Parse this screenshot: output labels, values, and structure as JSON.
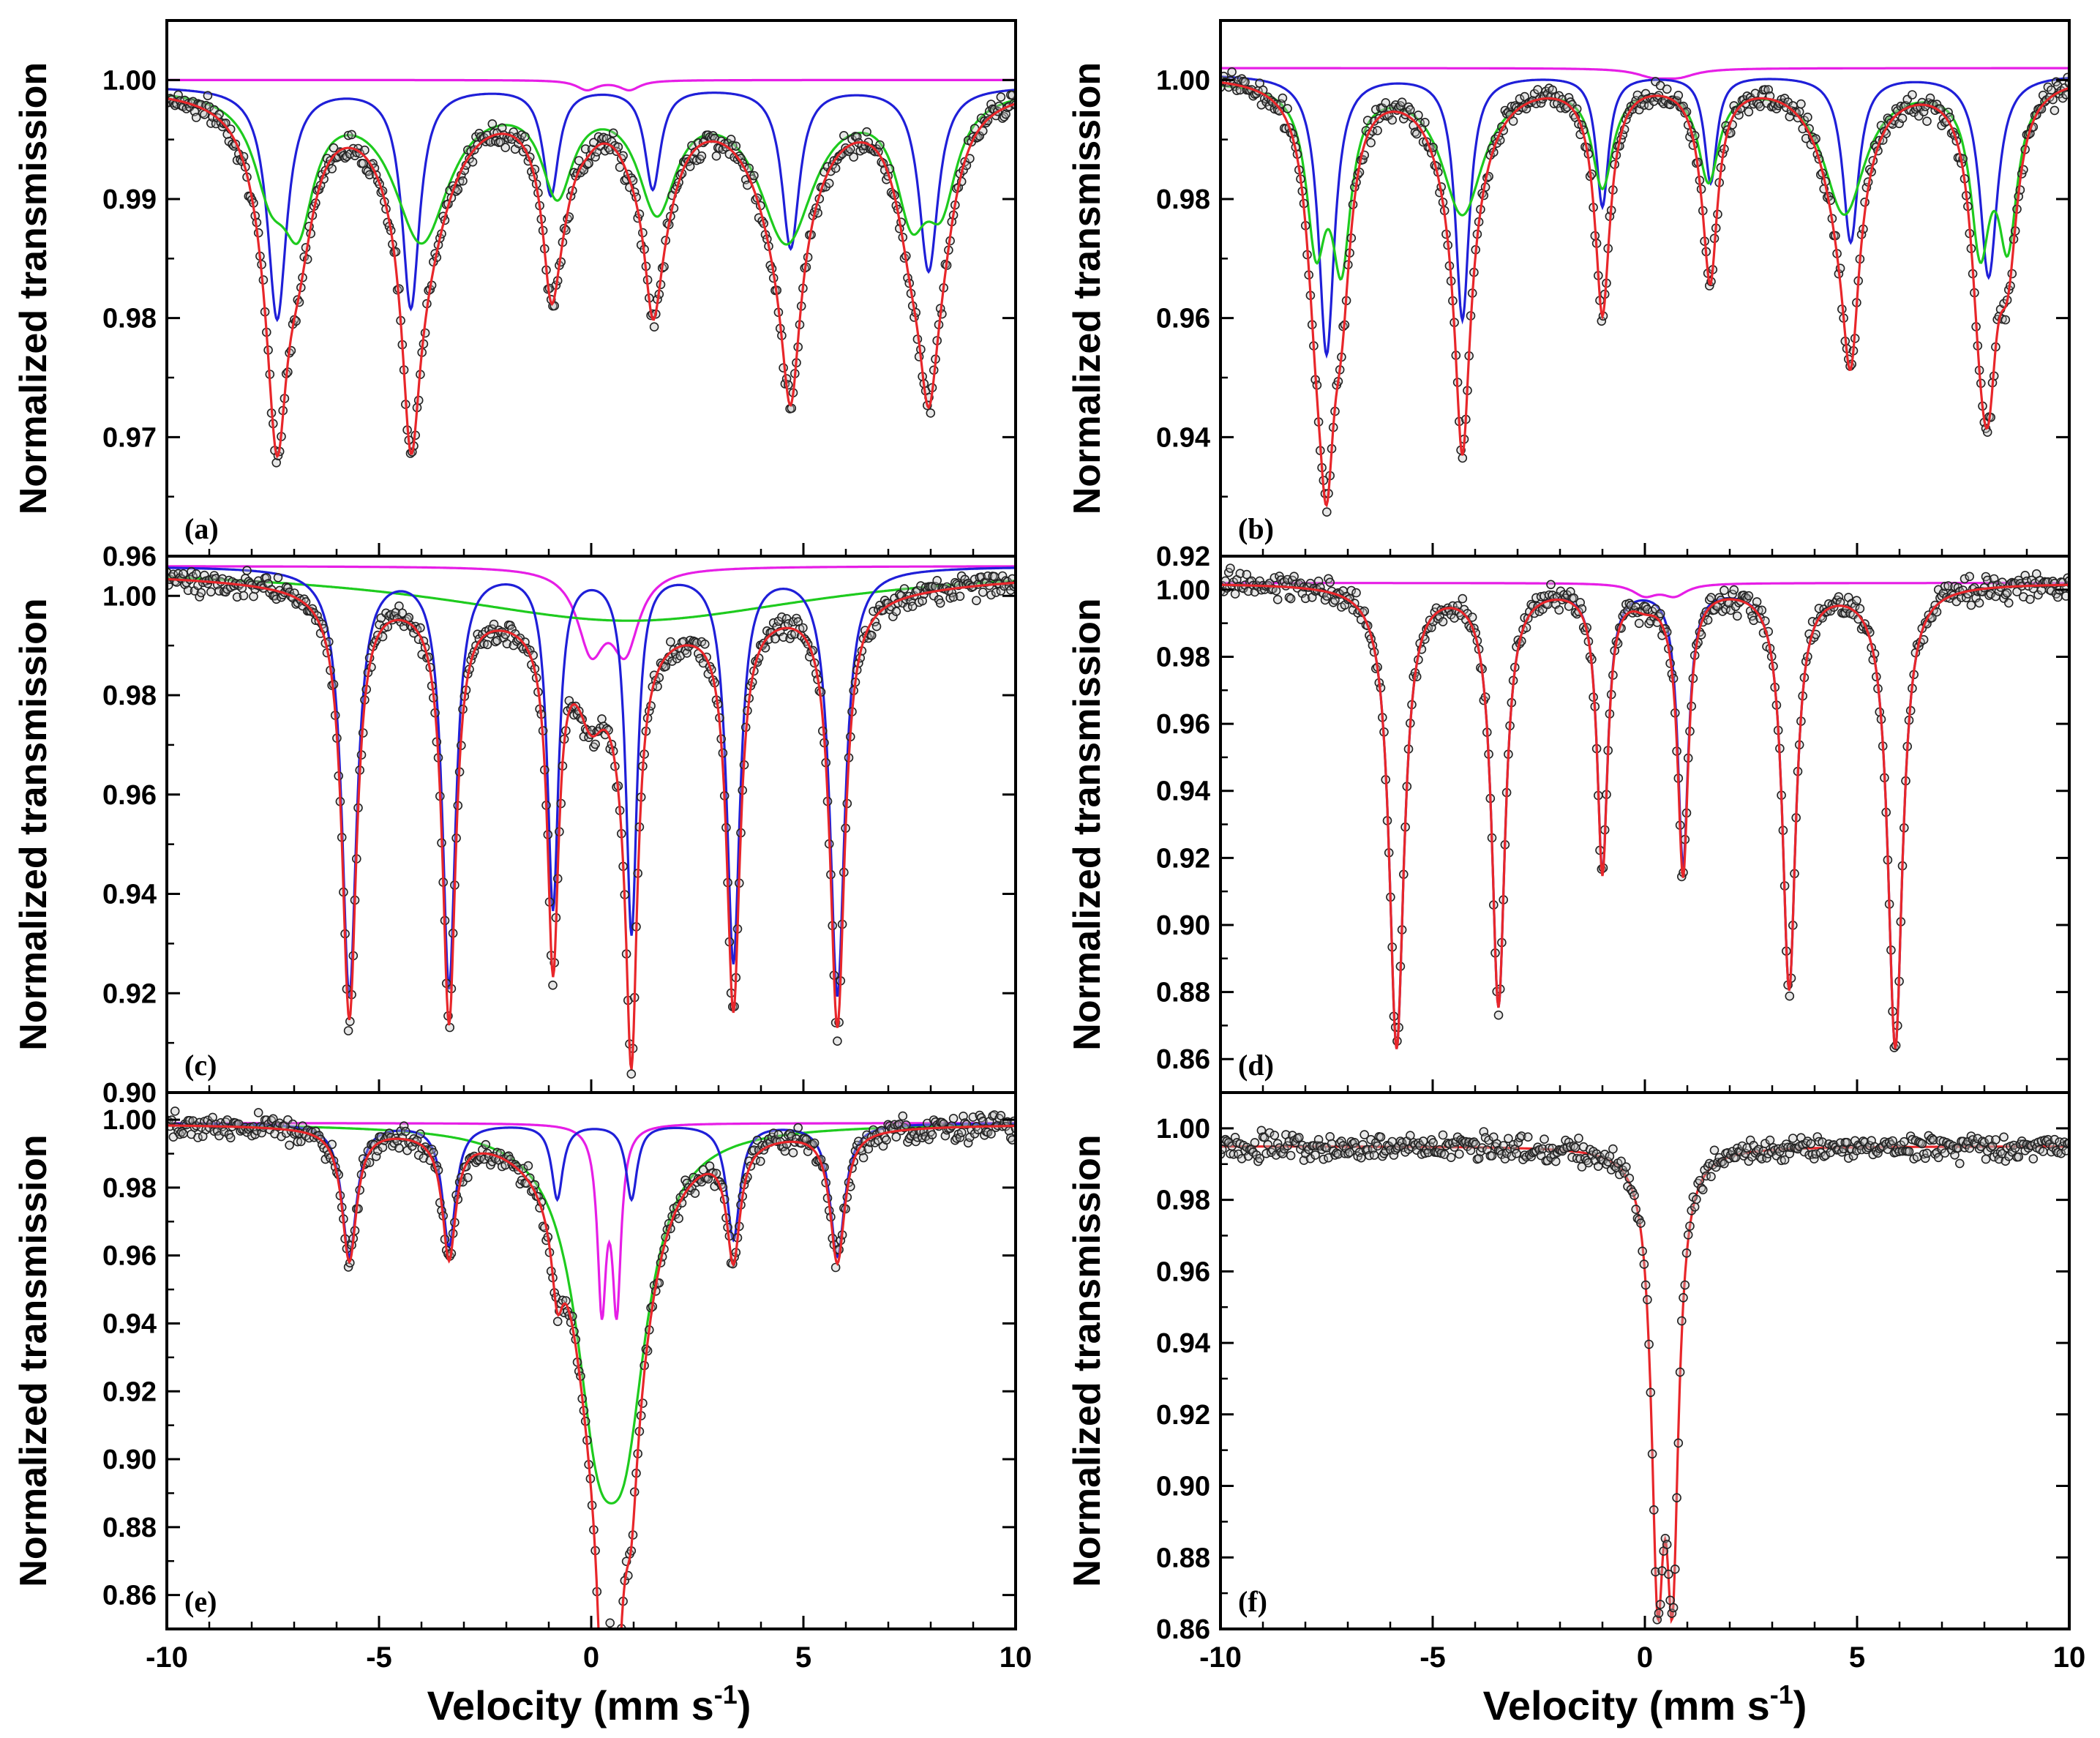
{
  "figure": {
    "ylabel": "Normalized transmission",
    "xlabel_main": "Velocity (mm s",
    "xlabel_sup": "-1",
    "xlabel_end": ")",
    "xticks": [
      "-10",
      "-5",
      "0",
      "5",
      "10"
    ]
  },
  "colors": {
    "fit_total": "#e8262a",
    "sextet_blue": "#1f1fd8",
    "sextet_green": "#1ecb1e",
    "doublet_magenta": "#e61ee6",
    "data_point_edge": "#222222",
    "data_point_fill": "#bdbdbd"
  },
  "chart_data": [
    {
      "panel": "(a)",
      "type": "line",
      "xlabel": "Velocity (mm s-1)",
      "ylabel": "Normalized transmission",
      "xlim": [
        -10,
        10
      ],
      "ylim": [
        0.96,
        1.005
      ],
      "yticks": [
        0.96,
        0.97,
        0.98,
        0.99,
        1.0
      ],
      "ytick_labels": [
        "0.96",
        "0.97",
        "0.98",
        "0.99",
        "1.00"
      ],
      "data_points": "experimental spectrum (scatter) with noise about the total fit",
      "series": [
        {
          "name": "magenta doublet",
          "color": "#e61ee6",
          "baseline": 1.0,
          "peaks": [
            [
              -0.1,
              0.0008,
              0.6
            ],
            [
              0.9,
              0.0008,
              0.6
            ]
          ]
        },
        {
          "name": "blue sextet",
          "color": "#1f1fd8",
          "baseline": 0.9995,
          "peaks": [
            [
              -7.4,
              0.0195,
              0.55
            ],
            [
              -4.25,
              0.0185,
              0.5
            ],
            [
              -0.95,
              0.009,
              0.45
            ],
            [
              1.45,
              0.0085,
              0.45
            ],
            [
              4.7,
              0.0135,
              0.5
            ],
            [
              7.95,
              0.0155,
              0.55
            ]
          ]
        },
        {
          "name": "green sextet",
          "color": "#1ecb1e",
          "baseline": 0.9995,
          "peaks": [
            [
              -7.55,
              0.007,
              1.0
            ],
            [
              -6.9,
              0.0095,
              0.9
            ],
            [
              -4.0,
              0.0125,
              1.6
            ],
            [
              -0.8,
              0.008,
              0.9
            ],
            [
              1.55,
              0.0095,
              1.1
            ],
            [
              4.6,
              0.0125,
              1.6
            ],
            [
              7.55,
              0.009,
              0.9
            ],
            [
              8.25,
              0.008,
              0.9
            ]
          ]
        },
        {
          "name": "total fit",
          "color": "#e8262a",
          "sum_of": [
            0,
            1,
            2
          ],
          "baseline": 0.9995
        }
      ]
    },
    {
      "panel": "(b)",
      "type": "line",
      "xlabel": "Velocity (mm s-1)",
      "ylabel": "Normalized transmission",
      "xlim": [
        -10,
        10
      ],
      "ylim": [
        0.92,
        1.01
      ],
      "yticks": [
        0.92,
        0.94,
        0.96,
        0.98,
        1.0
      ],
      "ytick_labels": [
        "0.92",
        "0.94",
        "0.96",
        "0.98",
        "1.00"
      ],
      "data_points": "experimental spectrum (scatter) with noise about the total fit",
      "series": [
        {
          "name": "magenta doublet",
          "color": "#e61ee6",
          "baseline": 1.002,
          "peaks": [
            [
              0.2,
              0.0012,
              1.0
            ],
            [
              0.8,
              0.0012,
              1.0
            ]
          ]
        },
        {
          "name": "blue sextet",
          "color": "#1f1fd8",
          "baseline": 1.001,
          "peaks": [
            [
              -7.5,
              0.047,
              0.45
            ],
            [
              -4.3,
              0.041,
              0.4
            ],
            [
              -1.0,
              0.022,
              0.35
            ],
            [
              1.55,
              0.018,
              0.35
            ],
            [
              4.85,
              0.028,
              0.45
            ],
            [
              8.1,
              0.034,
              0.5
            ]
          ]
        },
        {
          "name": "green sextet",
          "color": "#1ecb1e",
          "baseline": 1.0,
          "peaks": [
            [
              -7.75,
              0.025,
              0.55
            ],
            [
              -7.15,
              0.028,
              0.55
            ],
            [
              -4.3,
              0.022,
              1.2
            ],
            [
              -1.0,
              0.017,
              0.6
            ],
            [
              1.5,
              0.016,
              0.6
            ],
            [
              4.7,
              0.022,
              1.2
            ],
            [
              7.9,
              0.026,
              0.55
            ],
            [
              8.55,
              0.025,
              0.55
            ]
          ]
        },
        {
          "name": "total fit",
          "color": "#e8262a",
          "sum_of": [
            1,
            2
          ],
          "baseline": 1.001
        }
      ]
    },
    {
      "panel": "(c)",
      "type": "line",
      "xlabel": "Velocity (mm s-1)",
      "ylabel": "Normalized transmission",
      "xlim": [
        -10,
        10
      ],
      "ylim": [
        0.9,
        1.008
      ],
      "yticks": [
        0.9,
        0.92,
        0.94,
        0.96,
        0.98,
        1.0
      ],
      "ytick_labels": [
        "0.90",
        "0.92",
        "0.94",
        "0.96",
        "0.98",
        "1.00"
      ],
      "data_points": "experimental spectrum (scatter) with noise about the total fit",
      "series": [
        {
          "name": "magenta doublet",
          "color": "#e61ee6",
          "baseline": 1.006,
          "peaks": [
            [
              0.0,
              0.0155,
              0.8
            ],
            [
              0.8,
              0.0155,
              0.8
            ]
          ]
        },
        {
          "name": "green broad component",
          "color": "#1ecb1e",
          "baseline": 1.006,
          "peaks": [
            [
              0.9,
              0.011,
              11.0
            ]
          ]
        },
        {
          "name": "blue sextet",
          "color": "#1f1fd8",
          "baseline": 1.006,
          "peaks": [
            [
              -5.7,
              0.086,
              0.42
            ],
            [
              -3.35,
              0.084,
              0.38
            ],
            [
              -0.9,
              0.068,
              0.32
            ],
            [
              0.95,
              0.073,
              0.32
            ],
            [
              3.35,
              0.079,
              0.38
            ],
            [
              5.8,
              0.086,
              0.42
            ]
          ]
        },
        {
          "name": "total fit",
          "color": "#e8262a",
          "sum_of": [
            0,
            1,
            2
          ],
          "baseline": 1.006
        }
      ]
    },
    {
      "panel": "(d)",
      "type": "line",
      "xlabel": "Velocity (mm s-1)",
      "ylabel": "Normalized transmission",
      "xlim": [
        -10,
        10
      ],
      "ylim": [
        0.85,
        1.01
      ],
      "yticks": [
        0.86,
        0.88,
        0.9,
        0.92,
        0.94,
        0.96,
        0.98,
        1.0
      ],
      "ytick_labels": [
        "0.86",
        "0.88",
        "0.90",
        "0.92",
        "0.94",
        "0.96",
        "0.98",
        "1.00"
      ],
      "data_points": "experimental spectrum (scatter) with noise about the total fit",
      "series": [
        {
          "name": "magenta doublet",
          "color": "#e61ee6",
          "baseline": 1.002,
          "peaks": [
            [
              0.0,
              0.0035,
              0.7
            ],
            [
              0.7,
              0.0035,
              0.7
            ]
          ]
        },
        {
          "name": "blue sextet",
          "color": "#1f1fd8",
          "baseline": 1.002,
          "peaks": [
            [
              -5.85,
              0.138,
              0.42
            ],
            [
              -3.45,
              0.125,
              0.38
            ],
            [
              -1.0,
              0.085,
              0.3
            ],
            [
              0.9,
              0.083,
              0.3
            ],
            [
              3.4,
              0.12,
              0.38
            ],
            [
              5.9,
              0.138,
              0.42
            ]
          ]
        },
        {
          "name": "total fit",
          "color": "#e8262a",
          "sum_of": [
            0,
            1
          ],
          "baseline": 1.002
        }
      ]
    },
    {
      "panel": "(e)",
      "type": "line",
      "xlabel": "Velocity (mm s-1)",
      "ylabel": "Normalized transmission",
      "xlim": [
        -10,
        10
      ],
      "ylim": [
        0.85,
        1.008
      ],
      "yticks": [
        0.86,
        0.88,
        0.9,
        0.92,
        0.94,
        0.96,
        0.98,
        1.0
      ],
      "ytick_labels": [
        "0.86",
        "0.88",
        "0.90",
        "0.92",
        "0.94",
        "0.96",
        "0.98",
        "1.00"
      ],
      "data_points": "experimental spectrum (scatter) with noise about the total fit",
      "series": [
        {
          "name": "magenta doublet",
          "color": "#e61ee6",
          "baseline": 0.999,
          "peaks": [
            [
              0.25,
              0.052,
              0.25
            ],
            [
              0.6,
              0.052,
              0.25
            ]
          ]
        },
        {
          "name": "green broad doublet",
          "color": "#1ecb1e",
          "baseline": 0.999,
          "peaks": [
            [
              0.15,
              0.07,
              1.3
            ],
            [
              0.8,
              0.07,
              1.3
            ]
          ]
        },
        {
          "name": "blue sextet",
          "color": "#1f1fd8",
          "baseline": 0.999,
          "peaks": [
            [
              -5.7,
              0.039,
              0.42
            ],
            [
              -3.35,
              0.036,
              0.38
            ],
            [
              -0.8,
              0.022,
              0.32
            ],
            [
              0.95,
              0.022,
              0.32
            ],
            [
              3.35,
              0.034,
              0.38
            ],
            [
              5.8,
              0.039,
              0.42
            ]
          ]
        },
        {
          "name": "total fit",
          "color": "#e8262a",
          "sum_of": [
            0,
            1,
            2
          ],
          "baseline": 0.999
        }
      ]
    },
    {
      "panel": "(f)",
      "type": "line",
      "xlabel": "Velocity (mm s-1)",
      "ylabel": "Normalized transmission",
      "xlim": [
        -10,
        10
      ],
      "ylim": [
        0.86,
        1.01
      ],
      "yticks": [
        0.86,
        0.88,
        0.9,
        0.92,
        0.94,
        0.96,
        0.98,
        1.0
      ],
      "ytick_labels": [
        "0.86",
        "0.88",
        "0.90",
        "0.92",
        "0.94",
        "0.96",
        "0.98",
        "1.00"
      ],
      "data_points": "experimental spectrum (scatter) with noise about the total fit",
      "series": [
        {
          "name": "total fit (doublet)",
          "color": "#e8262a",
          "baseline": 0.995,
          "peaks": [
            [
              0.3,
              0.11,
              0.35
            ],
            [
              0.65,
              0.11,
              0.35
            ]
          ]
        }
      ]
    }
  ]
}
